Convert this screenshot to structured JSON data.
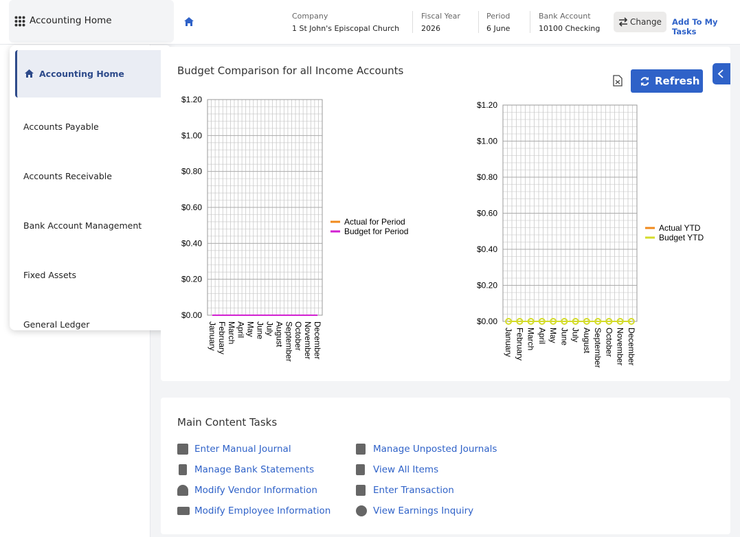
{
  "header": {
    "app_title": "Accounting Home",
    "fields": [
      {
        "label": "Company",
        "value": "1 St John's Episcopal Church"
      },
      {
        "label": "Fiscal Year",
        "value": "2026"
      },
      {
        "label": "Period",
        "value": "6 June"
      },
      {
        "label": "Bank Account",
        "value": "10100 Checking"
      }
    ],
    "change": "Change",
    "add_to_tasks": "Add To My Tasks"
  },
  "menu": [
    "Accounting Home",
    "Accounts Payable",
    "Accounts Receivable",
    "Bank Account Management",
    "Fixed Assets",
    "General Ledger"
  ],
  "budget_panel": {
    "title": "Budget Comparison for all Income Accounts",
    "refresh": "Refresh"
  },
  "chart_data": [
    {
      "type": "line",
      "categories": [
        "January",
        "February",
        "March",
        "April",
        "May",
        "June",
        "July",
        "August",
        "September",
        "October",
        "November",
        "December"
      ],
      "series": [
        {
          "name": "Actual for Period",
          "color": "#f08a1c",
          "values": [
            0,
            0,
            0,
            0,
            0,
            0,
            0,
            0,
            0,
            0,
            0,
            0
          ]
        },
        {
          "name": "Budget for Period",
          "color": "#d21fd2",
          "values": [
            0,
            0,
            0,
            0,
            0,
            0,
            0,
            0,
            0,
            0,
            0,
            0
          ]
        }
      ],
      "ylim": [
        0,
        1.2
      ],
      "yticks": [
        {
          "value": 0,
          "label": "$0.00"
        },
        {
          "value": 0.2,
          "label": "$0.20"
        },
        {
          "value": 0.4,
          "label": "$0.40"
        },
        {
          "value": 0.6,
          "label": "$0.60"
        },
        {
          "value": 0.8,
          "label": "$0.80"
        },
        {
          "value": 1,
          "label": "$1.00"
        },
        {
          "value": 1.2,
          "label": "$1.20"
        }
      ],
      "grid": true,
      "legend": "right"
    },
    {
      "type": "line",
      "categories": [
        "January",
        "February",
        "March",
        "April",
        "May",
        "June",
        "July",
        "August",
        "September",
        "October",
        "November",
        "December"
      ],
      "series": [
        {
          "name": "Actual YTD",
          "color": "#f08a1c",
          "values": [
            0,
            0,
            0,
            0,
            0,
            0,
            0,
            0,
            0,
            0,
            0,
            0
          ]
        },
        {
          "name": "Budget YTD",
          "color": "#d4dc2a",
          "marker": "circle",
          "values": [
            0,
            0,
            0,
            0,
            0,
            0,
            0,
            0,
            0,
            0,
            0,
            0
          ]
        }
      ],
      "ylim": [
        0,
        1.2
      ],
      "yticks": [
        {
          "value": 0,
          "label": "$0.00"
        },
        {
          "value": 0.2,
          "label": "$0.20"
        },
        {
          "value": 0.4,
          "label": "$0.40"
        },
        {
          "value": 0.6,
          "label": "$0.60"
        },
        {
          "value": 0.8,
          "label": "$0.80"
        },
        {
          "value": 1,
          "label": "$1.00"
        },
        {
          "value": 1.2,
          "label": "$1.20"
        }
      ],
      "grid": true,
      "legend": "right"
    }
  ],
  "tasks": {
    "title": "Main Content Tasks",
    "items": [
      "Enter Manual Journal",
      "Manage Bank Statements",
      "Modify Vendor Information",
      "Modify Employee Information",
      "Manage Unposted Journals",
      "View All Items",
      "Enter Transaction",
      "View Earnings Inquiry"
    ]
  }
}
